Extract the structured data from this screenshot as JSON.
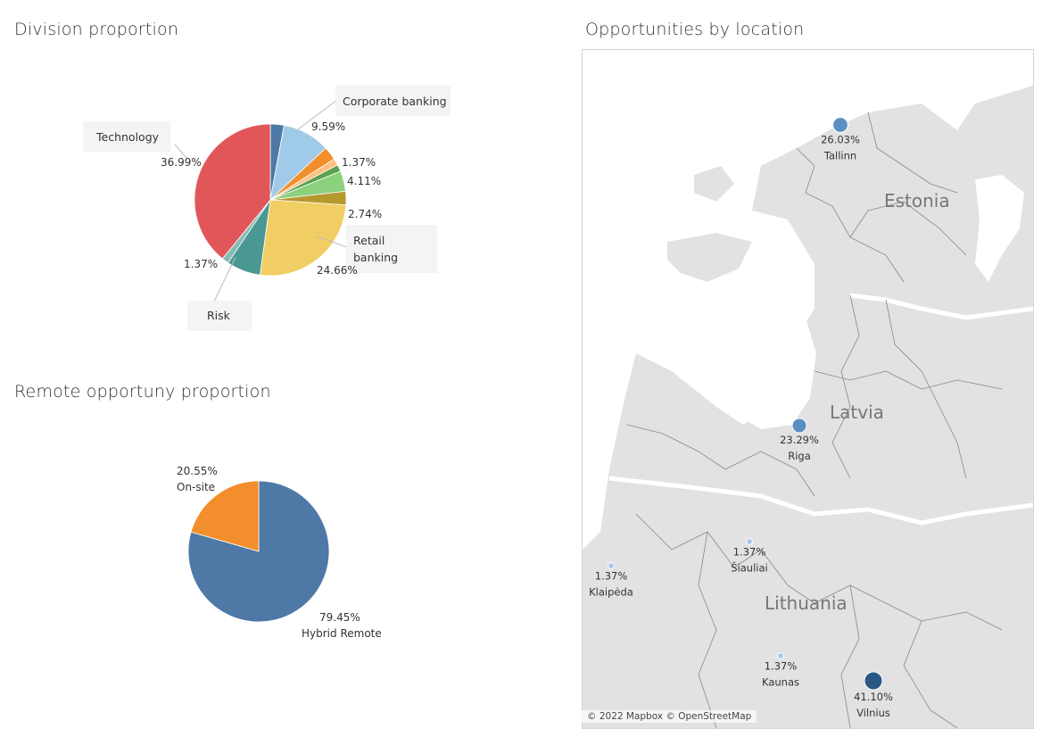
{
  "titles": {
    "division": "Division proportion",
    "remote": "Remote opportuny proportion",
    "location": "Opportunities by location"
  },
  "chart_data": [
    {
      "type": "pie",
      "title": "Division proportion",
      "slices": [
        {
          "value": 2.74,
          "color": "#4e79a7",
          "label": ""
        },
        {
          "value": 9.59,
          "color": "#a0cbe8",
          "label": "9.59%",
          "name": "Corporate banking"
        },
        {
          "value": 2.74,
          "color": "#f28e2b",
          "label": ""
        },
        {
          "value": 1.37,
          "color": "#ffbe7d",
          "label": "1.37%"
        },
        {
          "value": 1.37,
          "color": "#59a14f",
          "label": ""
        },
        {
          "value": 4.11,
          "color": "#8cd17d",
          "label": "4.11%"
        },
        {
          "value": 2.74,
          "color": "#b6992d",
          "label": "2.74%"
        },
        {
          "value": 24.66,
          "color": "#f1ce63",
          "label": "24.66%",
          "name": "Retail banking"
        },
        {
          "value": 6.85,
          "color": "#499894",
          "label": "",
          "name": "Risk"
        },
        {
          "value": 1.37,
          "color": "#86bcb6",
          "label": "1.37%"
        },
        {
          "value": 36.99,
          "color": "#e15759",
          "label": "36.99%",
          "name": "Technology"
        }
      ]
    },
    {
      "type": "pie",
      "title": "Remote opportuny proportion",
      "slices": [
        {
          "value": 79.45,
          "color": "#4e79a7",
          "label": "79.45%",
          "name": "Hybrid Remote"
        },
        {
          "value": 20.55,
          "color": "#f28e2b",
          "label": "20.55%",
          "name": "On-site"
        }
      ]
    }
  ],
  "map": {
    "title": "Opportunities by location",
    "countries": [
      "Estonia",
      "Latvia",
      "Lithuania"
    ],
    "attribution": "© 2022 Mapbox © OpenStreetMap",
    "locations": [
      {
        "city": "Tallinn",
        "pct": "26.03%",
        "value": 26.03
      },
      {
        "city": "Riga",
        "pct": "23.29%",
        "value": 23.29
      },
      {
        "city": "Šiauliai",
        "pct": "1.37%",
        "value": 1.37
      },
      {
        "city": "Klaipėda",
        "pct": "1.37%",
        "value": 1.37
      },
      {
        "city": "Kaunas",
        "pct": "1.37%",
        "value": 1.37
      },
      {
        "city": "Vilnius",
        "pct": "41.10%",
        "value": 41.1
      }
    ]
  }
}
